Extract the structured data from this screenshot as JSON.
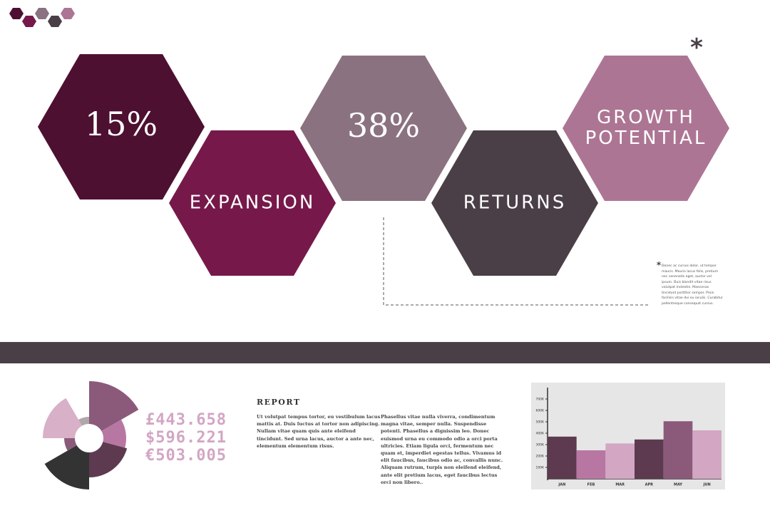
{
  "hexagons": [
    {
      "lines": [
        "15%"
      ]
    },
    {
      "lines": [
        "EXPANSION"
      ]
    },
    {
      "lines": [
        "38%"
      ]
    },
    {
      "lines": [
        "RETURNS"
      ]
    },
    {
      "lines": [
        "GROWTH",
        "POTENTIAL"
      ]
    }
  ],
  "asterisk": "*",
  "note": "Donec ac cursus dolor, ut tempor mauris. Mauris lacus felis, pretium nec venenatis eget, auctor vel ipsum. Duis blandit vitae risus volutpat molestie. Maecenas tincidunt porttitor semper. Proin facilisis vitae dui eu iaculis. Curabitur pellentesque consequat cursus.",
  "amounts": [
    "£443.658",
    "$596.221",
    "€503.005"
  ],
  "report": {
    "title": "REPORT",
    "columns": [
      "Ut volutpat tempus tortor, eu vestibulum lacus mattis at. Duis luctus at tortor non adipiscing. Nullam vitae quam quis ante eleifend tincidunt. Sed urna lacus, auctor a ante nec, elementum elementum risus.",
      "Phasellus vitae nulla viverra, condimentum magna vitae, semper nulla. Suspendisse potenti. Phasellus a dignissim leo. Donec euismod urna eu commodo odio a orci porta ultricies. Etiam ligula orci, fermentum nec quam et, imperdiet egestas tellus. Vivamus id elit faucibus, faucibus odio ac, convallis nunc. Aliquam rutrum, turpis non eleifend eleifend, ante elit pretium lacus, eget faucibus lectus orci non libero.."
    ]
  },
  "chart_data": {
    "type": "bar",
    "categories": [
      "JAN",
      "FEB",
      "MAR",
      "APR",
      "MAY",
      "JUN"
    ],
    "values": [
      370000,
      250000,
      310000,
      345000,
      505000,
      425000
    ],
    "colors": [
      "#5e3a50",
      "#b877a3",
      "#d3a6c3",
      "#5e3a50",
      "#8b5a7a",
      "#d3a6c3"
    ],
    "ylim": [
      0,
      800000
    ],
    "yticks": [
      {
        "value": 100000,
        "label": "100K"
      },
      {
        "value": 200000,
        "label": "200K"
      },
      {
        "value": 300000,
        "label": "300K"
      },
      {
        "value": 400000,
        "label": "400K"
      },
      {
        "value": 500000,
        "label": "500K"
      },
      {
        "value": 600000,
        "label": "600K"
      },
      {
        "value": 700000,
        "label": "700K"
      }
    ]
  }
}
